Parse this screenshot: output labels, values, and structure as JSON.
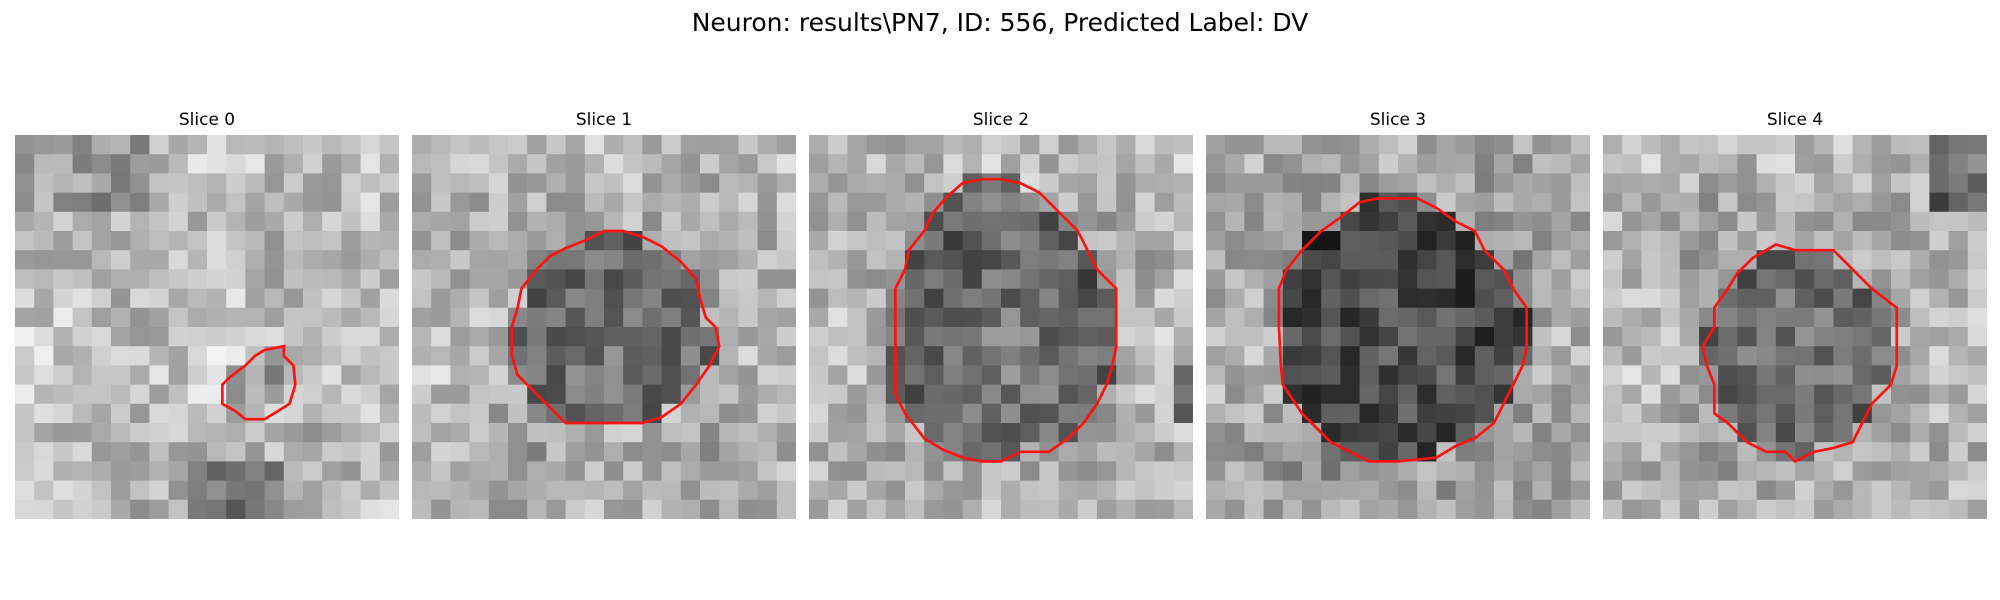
{
  "figure": {
    "title": "Neuron: results\\PN7, ID: 556, Predicted Label: DV"
  },
  "panels": [
    {
      "title": "Slice 0",
      "seed": 11,
      "texture": "bright",
      "contour": [
        [
          12,
          12
        ],
        [
          12.5,
          11.5
        ],
        [
          13,
          11.2
        ],
        [
          14,
          11
        ],
        [
          14,
          11.5
        ],
        [
          14.5,
          12
        ],
        [
          14.6,
          13
        ],
        [
          14.3,
          14
        ],
        [
          13.5,
          14.5
        ],
        [
          13,
          14.8
        ],
        [
          12,
          14.8
        ],
        [
          11.5,
          14.4
        ],
        [
          10.8,
          14
        ],
        [
          10.8,
          13
        ],
        [
          11.2,
          12.6
        ]
      ]
    },
    {
      "title": "Slice 1",
      "seed": 23,
      "texture": "medium",
      "contour": [
        [
          9,
          5.5
        ],
        [
          10,
          5
        ],
        [
          11,
          5
        ],
        [
          12,
          5.3
        ],
        [
          13,
          5.8
        ],
        [
          14,
          6.6
        ],
        [
          14.8,
          7.5
        ],
        [
          15,
          8.5
        ],
        [
          15.3,
          9.5
        ],
        [
          15.8,
          10
        ],
        [
          16,
          11
        ],
        [
          15.5,
          12
        ],
        [
          14.8,
          13
        ],
        [
          14,
          14
        ],
        [
          13,
          14.7
        ],
        [
          12,
          15
        ],
        [
          10,
          15
        ],
        [
          9,
          15
        ],
        [
          8,
          15
        ],
        [
          7.5,
          14.5
        ],
        [
          6.5,
          13.5
        ],
        [
          5.5,
          12.5
        ],
        [
          5.2,
          11.5
        ],
        [
          5.2,
          10
        ],
        [
          5.5,
          9
        ],
        [
          5.7,
          8
        ],
        [
          6.5,
          7
        ],
        [
          7.2,
          6.3
        ],
        [
          8,
          5.9
        ]
      ]
    },
    {
      "title": "Slice 2",
      "seed": 37,
      "texture": "medium",
      "contour": [
        [
          8,
          2.5
        ],
        [
          9,
          2.3
        ],
        [
          10,
          2.3
        ],
        [
          11,
          2.5
        ],
        [
          12,
          3
        ],
        [
          13,
          4
        ],
        [
          14,
          5
        ],
        [
          14.5,
          6
        ],
        [
          15,
          7
        ],
        [
          16,
          8
        ],
        [
          16,
          9
        ],
        [
          16,
          10
        ],
        [
          16,
          11
        ],
        [
          15.8,
          12
        ],
        [
          15.5,
          13
        ],
        [
          15,
          14
        ],
        [
          14.3,
          15
        ],
        [
          13.5,
          15.8
        ],
        [
          12.5,
          16.5
        ],
        [
          11,
          16.5
        ],
        [
          10,
          17
        ],
        [
          9,
          17
        ],
        [
          8,
          16.8
        ],
        [
          7,
          16.4
        ],
        [
          6,
          15.8
        ],
        [
          5,
          14.5
        ],
        [
          4.5,
          13.5
        ],
        [
          4.5,
          12
        ],
        [
          4.5,
          10
        ],
        [
          4.5,
          8
        ],
        [
          5,
          7
        ],
        [
          5.2,
          6
        ],
        [
          6,
          5
        ],
        [
          6.5,
          4
        ],
        [
          7.2,
          3.2
        ]
      ]
    },
    {
      "title": "Slice 3",
      "seed": 53,
      "texture": "dark",
      "contour": [
        [
          8,
          3.5
        ],
        [
          9,
          3.3
        ],
        [
          11,
          3.3
        ],
        [
          12,
          3.8
        ],
        [
          13,
          4.5
        ],
        [
          14,
          5
        ],
        [
          14.5,
          6
        ],
        [
          15.5,
          7
        ],
        [
          16,
          8
        ],
        [
          16.7,
          9
        ],
        [
          16.7,
          10
        ],
        [
          16.7,
          11
        ],
        [
          16.5,
          12
        ],
        [
          16,
          13
        ],
        [
          15.5,
          14
        ],
        [
          15,
          15
        ],
        [
          14,
          15.8
        ],
        [
          13,
          16.2
        ],
        [
          12,
          16.8
        ],
        [
          10,
          17
        ],
        [
          8.5,
          17
        ],
        [
          7.5,
          16.5
        ],
        [
          6.5,
          16
        ],
        [
          5.5,
          15
        ],
        [
          5,
          14.5
        ],
        [
          4,
          13
        ],
        [
          3.9,
          12
        ],
        [
          3.8,
          10
        ],
        [
          3.8,
          8
        ],
        [
          4.2,
          7
        ],
        [
          5,
          6
        ],
        [
          6,
          5
        ],
        [
          7,
          4.3
        ]
      ]
    },
    {
      "title": "Slice 4",
      "seed": 71,
      "texture": "medium",
      "contour": [
        [
          8.5,
          6
        ],
        [
          9,
          5.7
        ],
        [
          10,
          6
        ],
        [
          11,
          6
        ],
        [
          12,
          6
        ],
        [
          12.5,
          6.5
        ],
        [
          13,
          7
        ],
        [
          14,
          8
        ],
        [
          15.3,
          9
        ],
        [
          15.3,
          10
        ],
        [
          15.3,
          11
        ],
        [
          15.3,
          12
        ],
        [
          15,
          13
        ],
        [
          14,
          14
        ],
        [
          13.5,
          15
        ],
        [
          13,
          16
        ],
        [
          12,
          16.3
        ],
        [
          11,
          16.5
        ],
        [
          10,
          17
        ],
        [
          9.5,
          16.5
        ],
        [
          8.5,
          16.5
        ],
        [
          7.5,
          16
        ],
        [
          6.5,
          15
        ],
        [
          5.8,
          14.5
        ],
        [
          5.8,
          13
        ],
        [
          5.4,
          12
        ],
        [
          5.2,
          11
        ],
        [
          5.8,
          10
        ],
        [
          5.8,
          9
        ],
        [
          6.5,
          8
        ],
        [
          7,
          7.2
        ],
        [
          7.8,
          6.4
        ]
      ]
    }
  ]
}
